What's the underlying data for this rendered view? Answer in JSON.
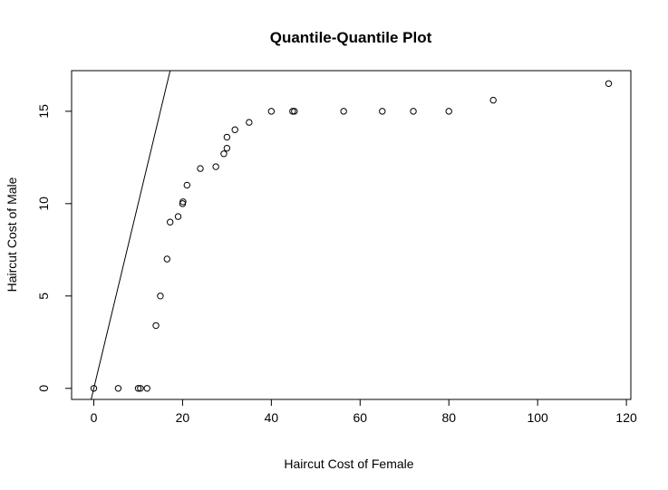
{
  "chart_data": {
    "type": "scatter",
    "title": "Quantile-Quantile Plot",
    "xlabel": "Haircut Cost of Female",
    "ylabel": "Haircut Cost of Male",
    "xlim": [
      -5,
      121
    ],
    "ylim": [
      -0.6,
      17.2
    ],
    "x_ticks": [
      0,
      20,
      40,
      60,
      80,
      100,
      120
    ],
    "y_ticks": [
      0,
      5,
      10,
      15
    ],
    "grid": false,
    "legend": "none",
    "points": [
      {
        "x": 0,
        "y": 0
      },
      {
        "x": 5.5,
        "y": 0
      },
      {
        "x": 10,
        "y": 0
      },
      {
        "x": 10.5,
        "y": 0
      },
      {
        "x": 12,
        "y": 0
      },
      {
        "x": 14,
        "y": 3.4
      },
      {
        "x": 15,
        "y": 5
      },
      {
        "x": 16.5,
        "y": 7
      },
      {
        "x": 17.2,
        "y": 9
      },
      {
        "x": 19,
        "y": 9.3
      },
      {
        "x": 20,
        "y": 10
      },
      {
        "x": 20.1,
        "y": 10.1
      },
      {
        "x": 21,
        "y": 11
      },
      {
        "x": 24,
        "y": 11.9
      },
      {
        "x": 27.5,
        "y": 12
      },
      {
        "x": 29.3,
        "y": 12.7
      },
      {
        "x": 30,
        "y": 13
      },
      {
        "x": 30,
        "y": 13.6
      },
      {
        "x": 31.8,
        "y": 14
      },
      {
        "x": 35,
        "y": 14.4
      },
      {
        "x": 40,
        "y": 15
      },
      {
        "x": 44.8,
        "y": 15
      },
      {
        "x": 45.2,
        "y": 15
      },
      {
        "x": 56.3,
        "y": 15
      },
      {
        "x": 65,
        "y": 15
      },
      {
        "x": 72,
        "y": 15
      },
      {
        "x": 80,
        "y": 15
      },
      {
        "x": 90,
        "y": 15.6
      },
      {
        "x": 116,
        "y": 16.5
      }
    ],
    "reference_line": {
      "intercept": 0,
      "slope": 1
    },
    "colors": {
      "points": "#000000",
      "line": "#000000",
      "axes": "#000000"
    }
  }
}
